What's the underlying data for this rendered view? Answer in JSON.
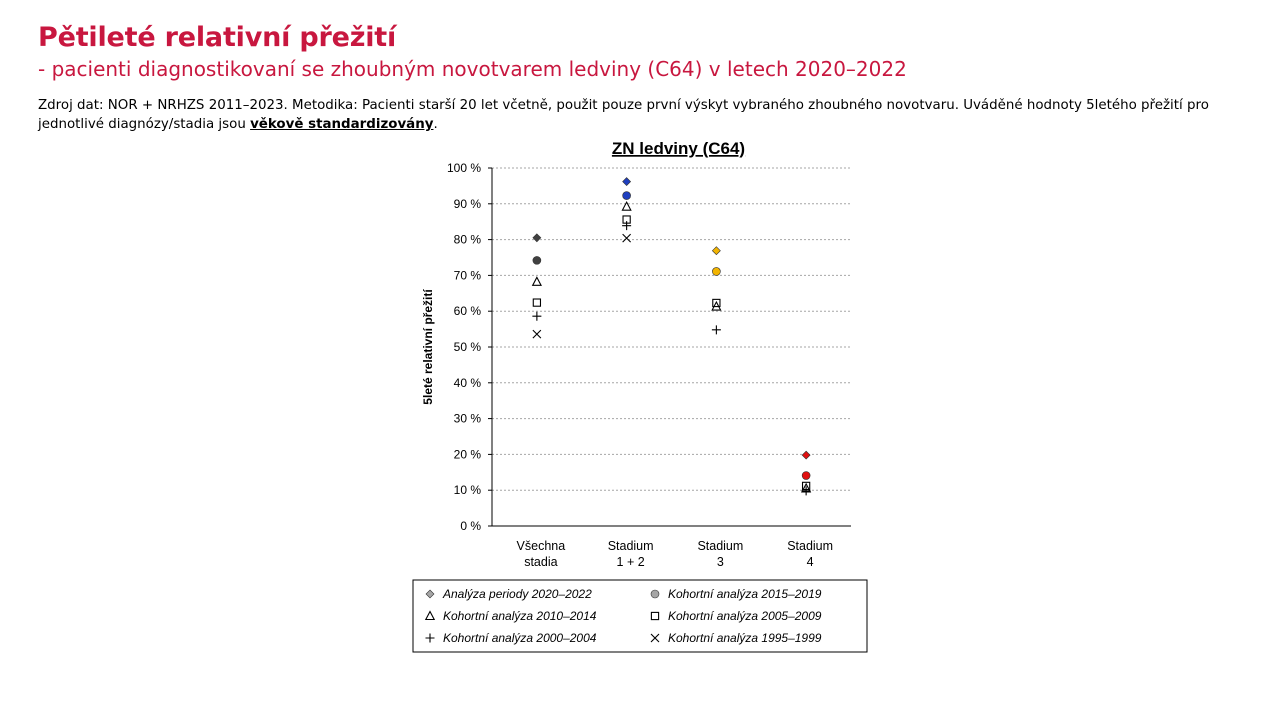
{
  "header": {
    "title": "Pětileté relativní přežití",
    "subtitle": "- pacienti diagnostikovaní se zhoubným novotvarem ledviny (C64) v letech 2020–2022"
  },
  "source": {
    "prefix": "Zdroj dat: NOR + NRHZS 2011–2023. Metodika: Pacienti starší 20 let včetně, použit pouze první výskyt vybraného zhoubného novotvaru. Uváděné hodnoty 5letého přežití pro jednotlivé diagnózy/stadia jsou ",
    "emphasis": "věkově standardizovány",
    "suffix": "."
  },
  "chart_data": {
    "type": "scatter",
    "title": "ZN ledviny (C64)",
    "ylabel": "5leté relativní přežití",
    "xlabel": "",
    "ylim": [
      0,
      100
    ],
    "yticks": [
      "0 %",
      "10 %",
      "20 %",
      "30 %",
      "40 %",
      "50 %",
      "60 %",
      "70 %",
      "80 %",
      "90 %",
      "100 %"
    ],
    "grid": true,
    "legend_position": "bottom",
    "categories": [
      [
        "Všechna",
        "stadia"
      ],
      [
        "Stadium",
        "1 + 2"
      ],
      [
        "Stadium",
        "3"
      ],
      [
        "Stadium",
        "4"
      ]
    ],
    "category_colors": [
      "#404040",
      "#1f3fbf",
      "#f2b400",
      "#e01010"
    ],
    "series": [
      {
        "name": "Analýza periody 2020–2022",
        "marker": "diamond",
        "filled": true,
        "values": [
          80.5,
          96.2,
          76.9,
          19.8
        ]
      },
      {
        "name": "Kohortní analýza 2015–2019",
        "marker": "circle",
        "filled": true,
        "values": [
          74.2,
          92.3,
          71.1,
          14.1
        ]
      },
      {
        "name": "Kohortní analýza 2010–2014",
        "marker": "triangle",
        "filled": false,
        "values": [
          68.2,
          89.2,
          61.3,
          10.5
        ]
      },
      {
        "name": "Kohortní analýza 2005–2009",
        "marker": "square",
        "filled": false,
        "values": [
          62.4,
          85.6,
          62.3,
          11.2
        ]
      },
      {
        "name": "Kohortní analýza 2000–2004",
        "marker": "plus",
        "filled": false,
        "values": [
          58.6,
          83.9,
          54.8,
          9.8
        ]
      },
      {
        "name": "Kohortní analýza 1995–1999",
        "marker": "x",
        "filled": false,
        "values": [
          53.6,
          80.4,
          null,
          null
        ]
      }
    ]
  }
}
